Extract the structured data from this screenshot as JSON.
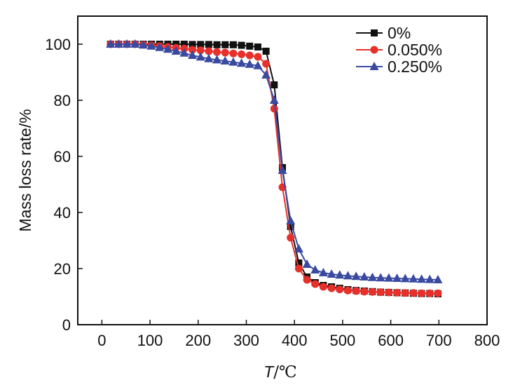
{
  "chart_data": {
    "type": "line",
    "title": "",
    "xlabel_italic": "T",
    "xlabel_unit": "/℃",
    "ylabel": "Mass loss rate/%",
    "xlim": [
      -50,
      800
    ],
    "ylim": [
      0,
      110
    ],
    "xticks": [
      0,
      100,
      200,
      300,
      400,
      500,
      600,
      700,
      800
    ],
    "yticks": [
      0,
      20,
      40,
      60,
      80,
      100
    ],
    "xtick_labels": [
      "0",
      "100",
      "200",
      "300",
      "400",
      "500",
      "600",
      "700",
      "800"
    ],
    "ytick_labels": [
      "0",
      "20",
      "40",
      "60",
      "80",
      "100"
    ],
    "grid": false,
    "legend_position": "top-right",
    "x": [
      18,
      35,
      52,
      69,
      86,
      103,
      120,
      137,
      154,
      171,
      188,
      205,
      222,
      239,
      256,
      273,
      290,
      307,
      324,
      341,
      358,
      375,
      392,
      409,
      426,
      443,
      460,
      477,
      494,
      511,
      528,
      545,
      562,
      579,
      596,
      613,
      630,
      647,
      664,
      681,
      698
    ],
    "series": [
      {
        "name": "0%",
        "color": "#111111",
        "marker": "square",
        "values": [
          100,
          100,
          100,
          100,
          100,
          100,
          100,
          100,
          100,
          100,
          99.9,
          99.9,
          99.9,
          99.8,
          99.8,
          99.8,
          99.6,
          99.3,
          99,
          97.5,
          85.5,
          56,
          35,
          22,
          17,
          15,
          14,
          13.5,
          13,
          12.5,
          12.2,
          12,
          11.8,
          11.6,
          11.5,
          11.4,
          11.3,
          11.2,
          11.1,
          11.1,
          11
        ]
      },
      {
        "name": "0.050%",
        "color": "#e8302a",
        "marker": "circle",
        "values": [
          100,
          100,
          100,
          100,
          99.8,
          99.6,
          99.3,
          99,
          98.7,
          98.4,
          98,
          97.8,
          97.5,
          97.2,
          97,
          96.7,
          96.4,
          96,
          95.5,
          93,
          77,
          49,
          31,
          20,
          16,
          14.5,
          13.5,
          13,
          12.6,
          12.2,
          12,
          11.8,
          11.7,
          11.6,
          11.5,
          11.4,
          11.3,
          11.3,
          11.2,
          11.2,
          11.2
        ]
      },
      {
        "name": "0.250%",
        "color": "#3a4aa0",
        "marker": "triangle",
        "values": [
          100,
          100,
          100,
          100,
          99.7,
          99.3,
          98.8,
          98.2,
          97.5,
          96.8,
          96,
          95.4,
          94.8,
          94.4,
          94,
          93.6,
          93.2,
          92.8,
          92.3,
          89,
          80,
          55,
          37,
          27,
          21.5,
          19.5,
          18.5,
          18,
          17.7,
          17.4,
          17.2,
          17,
          16.8,
          16.7,
          16.6,
          16.5,
          16.4,
          16.3,
          16.2,
          16.1,
          16
        ]
      }
    ]
  }
}
